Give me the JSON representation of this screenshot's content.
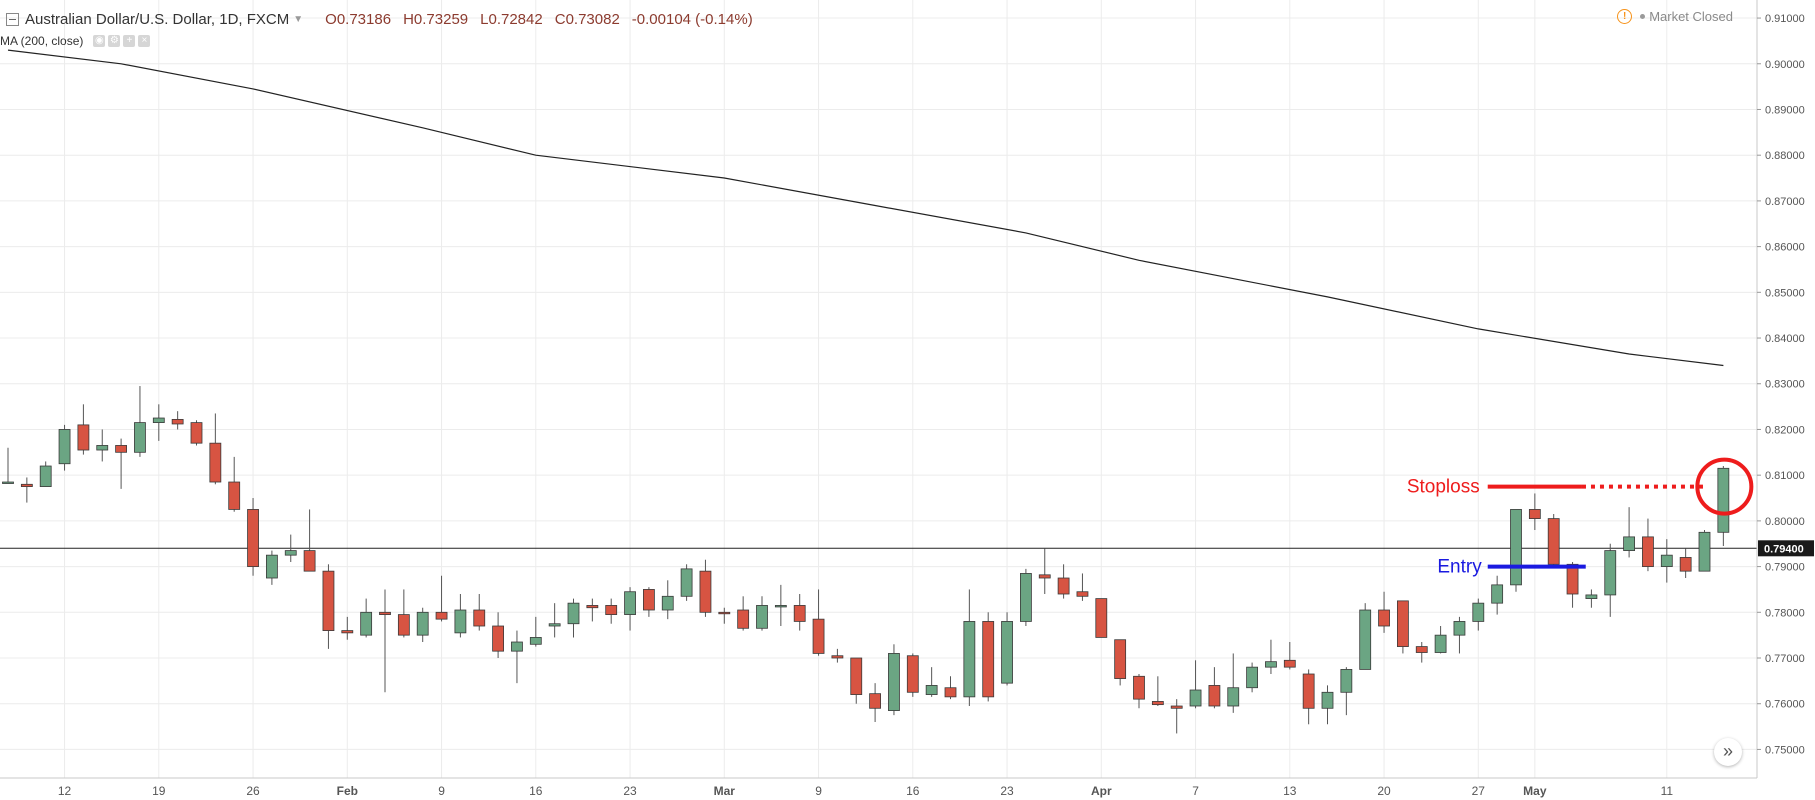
{
  "header": {
    "symbol_title": "Australian Dollar/U.S. Dollar, 1D, FXCM",
    "open_label": "O",
    "open": "0.73186",
    "high_label": "H",
    "high": "0.73259",
    "low_label": "L",
    "low": "0.72842",
    "close_label": "C",
    "close": "0.73082",
    "change": "-0.00104 (-0.14%)",
    "indicator": "MA (200, close)",
    "market_status": "Market Closed"
  },
  "chart_data": {
    "type": "candlestick",
    "ylim": [
      0.7455,
      0.9122
    ],
    "y_ticks": [
      "0.91000",
      "0.90000",
      "0.89000",
      "0.88000",
      "0.87000",
      "0.86000",
      "0.85000",
      "0.84000",
      "0.83000",
      "0.82000",
      "0.81000",
      "0.80000",
      "0.79000",
      "0.78000",
      "0.77000",
      "0.76000",
      "0.75000"
    ],
    "x_ticks": [
      {
        "label": "12",
        "index": 3
      },
      {
        "label": "19",
        "index": 8
      },
      {
        "label": "26",
        "index": 13
      },
      {
        "label": "Feb",
        "index": 18
      },
      {
        "label": "9",
        "index": 23
      },
      {
        "label": "16",
        "index": 28
      },
      {
        "label": "23",
        "index": 33
      },
      {
        "label": "Mar",
        "index": 38
      },
      {
        "label": "9",
        "index": 43
      },
      {
        "label": "16",
        "index": 48
      },
      {
        "label": "23",
        "index": 53
      },
      {
        "label": "Apr",
        "index": 58
      },
      {
        "label": "7",
        "index": 63
      },
      {
        "label": "13",
        "index": 68
      },
      {
        "label": "20",
        "index": 73
      },
      {
        "label": "27",
        "index": 78
      },
      {
        "label": "May",
        "index": 81
      },
      {
        "label": "11",
        "index": 88
      }
    ],
    "candles": [
      {
        "o": 0.8085,
        "h": 0.816,
        "l": 0.8085,
        "c": 0.8085
      },
      {
        "o": 0.808,
        "h": 0.8095,
        "l": 0.804,
        "c": 0.8075
      },
      {
        "o": 0.8075,
        "h": 0.813,
        "l": 0.8075,
        "c": 0.812
      },
      {
        "o": 0.8125,
        "h": 0.821,
        "l": 0.811,
        "c": 0.82
      },
      {
        "o": 0.821,
        "h": 0.8255,
        "l": 0.8145,
        "c": 0.8155
      },
      {
        "o": 0.8155,
        "h": 0.82,
        "l": 0.813,
        "c": 0.8165
      },
      {
        "o": 0.8165,
        "h": 0.818,
        "l": 0.807,
        "c": 0.815
      },
      {
        "o": 0.815,
        "h": 0.8295,
        "l": 0.814,
        "c": 0.8215
      },
      {
        "o": 0.8215,
        "h": 0.8255,
        "l": 0.8175,
        "c": 0.8225
      },
      {
        "o": 0.8222,
        "h": 0.824,
        "l": 0.82,
        "c": 0.8212
      },
      {
        "o": 0.8215,
        "h": 0.822,
        "l": 0.8165,
        "c": 0.817
      },
      {
        "o": 0.817,
        "h": 0.8235,
        "l": 0.808,
        "c": 0.8085
      },
      {
        "o": 0.8085,
        "h": 0.814,
        "l": 0.802,
        "c": 0.8025
      },
      {
        "o": 0.8025,
        "h": 0.805,
        "l": 0.788,
        "c": 0.79
      },
      {
        "o": 0.7875,
        "h": 0.7935,
        "l": 0.786,
        "c": 0.7925
      },
      {
        "o": 0.7925,
        "h": 0.797,
        "l": 0.791,
        "c": 0.7935
      },
      {
        "o": 0.7935,
        "h": 0.8025,
        "l": 0.789,
        "c": 0.789
      },
      {
        "o": 0.789,
        "h": 0.7905,
        "l": 0.772,
        "c": 0.776
      },
      {
        "o": 0.776,
        "h": 0.779,
        "l": 0.774,
        "c": 0.7755
      },
      {
        "o": 0.775,
        "h": 0.783,
        "l": 0.7745,
        "c": 0.78
      },
      {
        "o": 0.78,
        "h": 0.785,
        "l": 0.7625,
        "c": 0.7795
      },
      {
        "o": 0.7795,
        "h": 0.785,
        "l": 0.7745,
        "c": 0.775
      },
      {
        "o": 0.775,
        "h": 0.781,
        "l": 0.7735,
        "c": 0.78
      },
      {
        "o": 0.78,
        "h": 0.788,
        "l": 0.778,
        "c": 0.7785
      },
      {
        "o": 0.7755,
        "h": 0.784,
        "l": 0.7745,
        "c": 0.7805
      },
      {
        "o": 0.7805,
        "h": 0.784,
        "l": 0.776,
        "c": 0.777
      },
      {
        "o": 0.777,
        "h": 0.78,
        "l": 0.77,
        "c": 0.7715
      },
      {
        "o": 0.7715,
        "h": 0.776,
        "l": 0.7645,
        "c": 0.7735
      },
      {
        "o": 0.773,
        "h": 0.779,
        "l": 0.7725,
        "c": 0.7745
      },
      {
        "o": 0.777,
        "h": 0.782,
        "l": 0.7745,
        "c": 0.7775
      },
      {
        "o": 0.7775,
        "h": 0.783,
        "l": 0.7745,
        "c": 0.782
      },
      {
        "o": 0.7815,
        "h": 0.783,
        "l": 0.778,
        "c": 0.781
      },
      {
        "o": 0.7815,
        "h": 0.783,
        "l": 0.7775,
        "c": 0.7795
      },
      {
        "o": 0.7795,
        "h": 0.7855,
        "l": 0.776,
        "c": 0.7845
      },
      {
        "o": 0.785,
        "h": 0.7855,
        "l": 0.779,
        "c": 0.7805
      },
      {
        "o": 0.7805,
        "h": 0.787,
        "l": 0.7785,
        "c": 0.7835
      },
      {
        "o": 0.7835,
        "h": 0.7905,
        "l": 0.7825,
        "c": 0.7895
      },
      {
        "o": 0.789,
        "h": 0.7915,
        "l": 0.779,
        "c": 0.78
      },
      {
        "o": 0.78,
        "h": 0.781,
        "l": 0.7775,
        "c": 0.7797
      },
      {
        "o": 0.7805,
        "h": 0.7835,
        "l": 0.776,
        "c": 0.7765
      },
      {
        "o": 0.7765,
        "h": 0.7835,
        "l": 0.776,
        "c": 0.7815
      },
      {
        "o": 0.7815,
        "h": 0.786,
        "l": 0.777,
        "c": 0.7815
      },
      {
        "o": 0.7815,
        "h": 0.784,
        "l": 0.776,
        "c": 0.778
      },
      {
        "o": 0.7785,
        "h": 0.785,
        "l": 0.7705,
        "c": 0.771
      },
      {
        "o": 0.7705,
        "h": 0.772,
        "l": 0.769,
        "c": 0.77
      },
      {
        "o": 0.77,
        "h": 0.77,
        "l": 0.76,
        "c": 0.762
      },
      {
        "o": 0.7622,
        "h": 0.7645,
        "l": 0.756,
        "c": 0.759
      },
      {
        "o": 0.7585,
        "h": 0.773,
        "l": 0.7575,
        "c": 0.771
      },
      {
        "o": 0.7705,
        "h": 0.771,
        "l": 0.7615,
        "c": 0.7625
      },
      {
        "o": 0.762,
        "h": 0.768,
        "l": 0.7615,
        "c": 0.764
      },
      {
        "o": 0.7635,
        "h": 0.766,
        "l": 0.761,
        "c": 0.7615
      },
      {
        "o": 0.7615,
        "h": 0.785,
        "l": 0.7595,
        "c": 0.778
      },
      {
        "o": 0.778,
        "h": 0.78,
        "l": 0.7605,
        "c": 0.7615
      },
      {
        "o": 0.7645,
        "h": 0.78,
        "l": 0.764,
        "c": 0.778
      },
      {
        "o": 0.778,
        "h": 0.7895,
        "l": 0.777,
        "c": 0.7885
      },
      {
        "o": 0.7882,
        "h": 0.794,
        "l": 0.784,
        "c": 0.7875
      },
      {
        "o": 0.7875,
        "h": 0.7905,
        "l": 0.783,
        "c": 0.784
      },
      {
        "o": 0.7845,
        "h": 0.7885,
        "l": 0.7825,
        "c": 0.7835
      },
      {
        "o": 0.783,
        "h": 0.783,
        "l": 0.7745,
        "c": 0.7745
      },
      {
        "o": 0.774,
        "h": 0.774,
        "l": 0.764,
        "c": 0.7655
      },
      {
        "o": 0.766,
        "h": 0.7665,
        "l": 0.759,
        "c": 0.761
      },
      {
        "o": 0.7605,
        "h": 0.766,
        "l": 0.7595,
        "c": 0.7598
      },
      {
        "o": 0.7595,
        "h": 0.761,
        "l": 0.7535,
        "c": 0.759
      },
      {
        "o": 0.7595,
        "h": 0.7695,
        "l": 0.759,
        "c": 0.763
      },
      {
        "o": 0.764,
        "h": 0.768,
        "l": 0.759,
        "c": 0.7595
      },
      {
        "o": 0.7595,
        "h": 0.771,
        "l": 0.758,
        "c": 0.7635
      },
      {
        "o": 0.7635,
        "h": 0.769,
        "l": 0.7625,
        "c": 0.768
      },
      {
        "o": 0.768,
        "h": 0.774,
        "l": 0.7665,
        "c": 0.7692
      },
      {
        "o": 0.7695,
        "h": 0.7735,
        "l": 0.7675,
        "c": 0.768
      },
      {
        "o": 0.7665,
        "h": 0.7675,
        "l": 0.7555,
        "c": 0.759
      },
      {
        "o": 0.759,
        "h": 0.764,
        "l": 0.7555,
        "c": 0.7625
      },
      {
        "o": 0.7625,
        "h": 0.768,
        "l": 0.7575,
        "c": 0.7675
      },
      {
        "o": 0.7675,
        "h": 0.782,
        "l": 0.7675,
        "c": 0.7805
      },
      {
        "o": 0.7805,
        "h": 0.7845,
        "l": 0.7755,
        "c": 0.777
      },
      {
        "o": 0.7825,
        "h": 0.7825,
        "l": 0.771,
        "c": 0.7725
      },
      {
        "o": 0.7725,
        "h": 0.7735,
        "l": 0.769,
        "c": 0.7712
      },
      {
        "o": 0.7712,
        "h": 0.777,
        "l": 0.771,
        "c": 0.775
      },
      {
        "o": 0.775,
        "h": 0.779,
        "l": 0.771,
        "c": 0.778
      },
      {
        "o": 0.778,
        "h": 0.783,
        "l": 0.776,
        "c": 0.782
      },
      {
        "o": 0.782,
        "h": 0.788,
        "l": 0.7795,
        "c": 0.786
      },
      {
        "o": 0.786,
        "h": 0.8025,
        "l": 0.7845,
        "c": 0.8025
      },
      {
        "o": 0.8025,
        "h": 0.806,
        "l": 0.798,
        "c": 0.8005
      },
      {
        "o": 0.8005,
        "h": 0.8015,
        "l": 0.79,
        "c": 0.7905
      },
      {
        "o": 0.7905,
        "h": 0.791,
        "l": 0.781,
        "c": 0.784
      },
      {
        "o": 0.783,
        "h": 0.785,
        "l": 0.781,
        "c": 0.7838
      },
      {
        "o": 0.7838,
        "h": 0.795,
        "l": 0.779,
        "c": 0.7935
      },
      {
        "o": 0.7935,
        "h": 0.803,
        "l": 0.792,
        "c": 0.7965
      },
      {
        "o": 0.7965,
        "h": 0.8005,
        "l": 0.789,
        "c": 0.79
      },
      {
        "o": 0.79,
        "h": 0.796,
        "l": 0.7865,
        "c": 0.7925
      },
      {
        "o": 0.792,
        "h": 0.794,
        "l": 0.7875,
        "c": 0.789
      },
      {
        "o": 0.789,
        "h": 0.798,
        "l": 0.789,
        "c": 0.7975
      },
      {
        "o": 0.7975,
        "h": 0.812,
        "l": 0.7945,
        "c": 0.8115
      }
    ],
    "ma200": [
      [
        0,
        0.903
      ],
      [
        6,
        0.9
      ],
      [
        13,
        0.8945
      ],
      [
        22,
        0.886
      ],
      [
        28,
        0.88
      ],
      [
        38,
        0.875
      ],
      [
        46,
        0.869
      ],
      [
        54,
        0.863
      ],
      [
        60,
        0.857
      ],
      [
        70,
        0.849
      ],
      [
        78,
        0.842
      ],
      [
        86,
        0.8365
      ],
      [
        91,
        0.834
      ]
    ],
    "price_line": {
      "value": 0.794,
      "label": "0.79400"
    },
    "annotations": {
      "stoploss": {
        "text": "Stoploss",
        "value": 0.8075,
        "from_index": 78.5,
        "solid_to_index": 83.5,
        "dotted_to_index": 90
      },
      "entry": {
        "text": "Entry",
        "value": 0.79,
        "from_index": 78.5,
        "to_index": 83.7
      },
      "circle": {
        "index": 91,
        "value": 0.8075
      }
    }
  },
  "colors": {
    "bull": "#6ba583",
    "bear": "#d75442",
    "stoploss": "#ee1c1c",
    "entry": "#1a1ae0",
    "grid": "#ececec",
    "ma": "#222222"
  },
  "ui": {
    "scroll_icon": "double-chevron-right-icon",
    "warning_icon": "warning-icon"
  }
}
